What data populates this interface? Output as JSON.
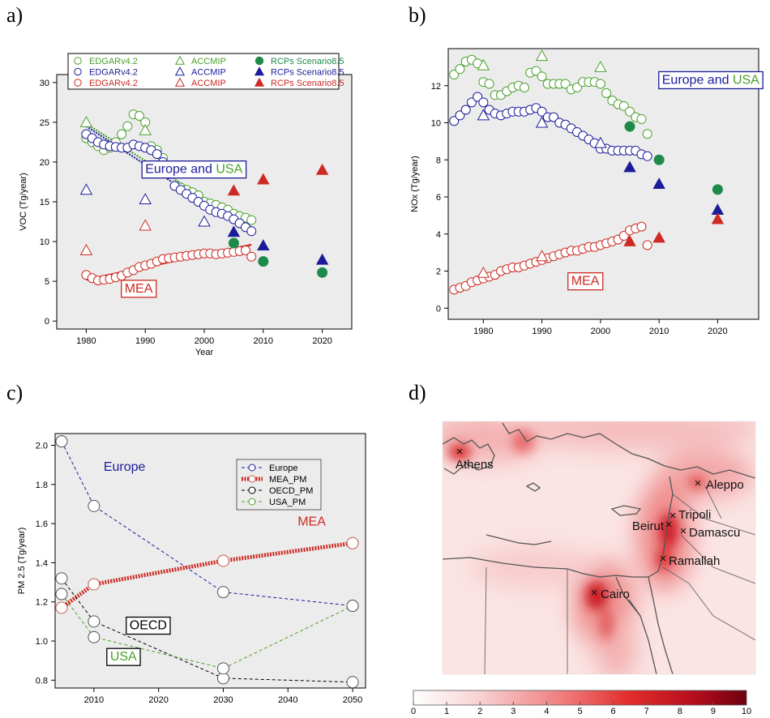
{
  "panels": {
    "a": "a)",
    "b": "b)",
    "c": "c)",
    "d": "d)"
  },
  "colors": {
    "green": "#4aa02c",
    "blue": "#1c1c9a",
    "red": "#cc2a22",
    "dkgreen": "#1e8a4a",
    "black": "#000000"
  },
  "chart_data": [
    {
      "type": "scatter",
      "panel": "a",
      "ylabel": "VOC (Tg/year)",
      "xlabel": "Year",
      "xlim": [
        1975,
        2025
      ],
      "ylim": [
        -1,
        31
      ],
      "xticks": [
        1980,
        1990,
        2000,
        2010,
        2020
      ],
      "yticks": [
        0,
        5,
        10,
        15,
        20,
        25,
        30
      ],
      "legend": {
        "position": "top",
        "entries": [
          {
            "label": "EDGARv4.2",
            "color": "green",
            "marker": "circle-open"
          },
          {
            "label": "ACCMIP",
            "color": "green",
            "marker": "triangle-open"
          },
          {
            "label": "RCPs Scenario8.5",
            "color": "dkgreen",
            "marker": "circle-filled"
          },
          {
            "label": "EDGARv4.2",
            "color": "blue",
            "marker": "circle-open"
          },
          {
            "label": "ACCMIP",
            "color": "blue",
            "marker": "triangle-open"
          },
          {
            "label": "RCPs Scenario8.5",
            "color": "blue",
            "marker": "triangle-filled"
          },
          {
            "label": "EDGARv4.2",
            "color": "red",
            "marker": "circle-open"
          },
          {
            "label": "ACCMIP",
            "color": "red",
            "marker": "triangle-open"
          },
          {
            "label": "RCPs Scenario8.5",
            "color": "red",
            "marker": "triangle-filled"
          }
        ]
      },
      "series": [
        {
          "color": "green",
          "marker": "circle-open",
          "x": [
            1980,
            1981,
            1982,
            1983,
            1984,
            1985,
            1986,
            1987,
            1988,
            1989,
            1990,
            1991,
            1992,
            1993,
            1994,
            1995,
            1996,
            1997,
            1998,
            1999,
            2000,
            2001,
            2002,
            2003,
            2004,
            2005,
            2006,
            2007,
            2008
          ],
          "y": [
            23,
            22.5,
            22,
            21.5,
            21.8,
            22.5,
            23.5,
            24.5,
            26,
            25.8,
            25,
            22,
            21.5,
            20.5,
            19,
            17,
            16.8,
            16.5,
            16.2,
            15.8,
            15,
            14.8,
            14.6,
            14.3,
            14,
            13.5,
            13.2,
            13,
            12.7
          ]
        },
        {
          "color": "blue",
          "marker": "circle-open",
          "x": [
            1980,
            1981,
            1982,
            1983,
            1984,
            1985,
            1986,
            1987,
            1988,
            1989,
            1990,
            1991,
            1992,
            1993,
            1994,
            1995,
            1996,
            1997,
            1998,
            1999,
            2000,
            2001,
            2002,
            2003,
            2004,
            2005,
            2006,
            2007,
            2008
          ],
          "y": [
            23.5,
            23,
            22.5,
            22.2,
            22,
            21.9,
            21.8,
            21.8,
            22.2,
            22,
            21.8,
            21.5,
            21,
            20,
            18.5,
            17,
            16.5,
            16,
            15.5,
            15,
            14.5,
            14,
            13.7,
            13.5,
            13.2,
            12.8,
            12.3,
            11.8,
            11.3
          ]
        },
        {
          "color": "red",
          "marker": "circle-open",
          "x": [
            1980,
            1981,
            1982,
            1983,
            1984,
            1985,
            1986,
            1987,
            1988,
            1989,
            1990,
            1991,
            1992,
            1993,
            1994,
            1995,
            1996,
            1997,
            1998,
            1999,
            2000,
            2001,
            2002,
            2003,
            2004,
            2005,
            2006,
            2007,
            2008
          ],
          "y": [
            5.8,
            5.4,
            5.1,
            5.2,
            5.3,
            5.5,
            5.7,
            6.1,
            6.4,
            6.8,
            7,
            7.2,
            7.5,
            7.8,
            7.9,
            8,
            8.1,
            8.2,
            8.3,
            8.4,
            8.5,
            8.5,
            8.4,
            8.5,
            8.6,
            8.7,
            8.8,
            8.9,
            8.1
          ]
        },
        {
          "color": "green",
          "marker": "triangle-open",
          "x": [
            1980,
            1990
          ],
          "y": [
            25,
            24
          ]
        },
        {
          "color": "blue",
          "marker": "triangle-open",
          "x": [
            1980,
            1990,
            2000
          ],
          "y": [
            16.5,
            15.3,
            12.5
          ]
        },
        {
          "color": "red",
          "marker": "triangle-open",
          "x": [
            1980,
            1990
          ],
          "y": [
            8.9,
            12
          ]
        },
        {
          "color": "dkgreen",
          "marker": "circle-filled",
          "x": [
            2005,
            2010,
            2020
          ],
          "y": [
            9.8,
            7.5,
            6.1
          ]
        },
        {
          "color": "blue",
          "marker": "triangle-filled",
          "x": [
            2005,
            2010,
            2020
          ],
          "y": [
            11.2,
            9.5,
            7.7
          ]
        },
        {
          "color": "red",
          "marker": "triangle-filled",
          "x": [
            2005,
            2010,
            2020
          ],
          "y": [
            16.4,
            17.8,
            19
          ]
        }
      ],
      "trendlines": [
        {
          "color": "green",
          "x": [
            1980,
            2008
          ],
          "y": [
            24.8,
            11.8
          ]
        },
        {
          "color": "blue",
          "x": [
            1980,
            2008
          ],
          "y": [
            24.5,
            11
          ]
        },
        {
          "color": "red",
          "x": [
            1980,
            2008
          ],
          "y": [
            5.2,
            9.6
          ]
        }
      ],
      "annotations": [
        {
          "parts": [
            {
              "text": "Europe and ",
              "color": "blue"
            },
            {
              "text": "USA",
              "color": "green"
            }
          ],
          "x": 1990,
          "y": 18.6,
          "border": "blue"
        },
        {
          "parts": [
            {
              "text": "MEA",
              "color": "red"
            }
          ],
          "x": 1986.5,
          "y": 3.6,
          "border": "red"
        }
      ]
    },
    {
      "type": "scatter",
      "panel": "b",
      "ylabel": "NOx (Tg/year)",
      "xlim": [
        1974,
        2027
      ],
      "ylim": [
        -0.6,
        14
      ],
      "xticks": [
        1980,
        1990,
        2000,
        2010,
        2020
      ],
      "yticks": [
        0,
        2,
        4,
        6,
        8,
        10,
        12
      ],
      "series": [
        {
          "color": "green",
          "marker": "circle-open",
          "x": [
            1975,
            1976,
            1977,
            1978,
            1979,
            1980,
            1981,
            1982,
            1983,
            1984,
            1985,
            1986,
            1987,
            1988,
            1989,
            1990,
            1991,
            1992,
            1993,
            1994,
            1995,
            1996,
            1997,
            1998,
            1999,
            2000,
            2001,
            2002,
            2003,
            2004,
            2005,
            2006,
            2007,
            2008
          ],
          "y": [
            12.6,
            12.9,
            13.3,
            13.4,
            13.2,
            12.2,
            12.1,
            11.5,
            11.5,
            11.7,
            11.9,
            12,
            11.9,
            12.7,
            12.8,
            12.5,
            12.1,
            12.1,
            12.1,
            12.1,
            11.8,
            11.9,
            12.2,
            12.2,
            12.2,
            12.1,
            11.6,
            11.2,
            11,
            10.9,
            10.6,
            10.3,
            10.2,
            9.4
          ]
        },
        {
          "color": "blue",
          "marker": "circle-open",
          "x": [
            1975,
            1976,
            1977,
            1978,
            1979,
            1980,
            1981,
            1982,
            1983,
            1984,
            1985,
            1986,
            1987,
            1988,
            1989,
            1990,
            1991,
            1992,
            1993,
            1994,
            1995,
            1996,
            1997,
            1998,
            1999,
            2000,
            2001,
            2002,
            2003,
            2004,
            2005,
            2006,
            2007,
            2008
          ],
          "y": [
            10.1,
            10.4,
            10.7,
            11.1,
            11.4,
            11.1,
            10.7,
            10.5,
            10.4,
            10.5,
            10.6,
            10.6,
            10.6,
            10.7,
            10.8,
            10.6,
            10.3,
            10.3,
            10,
            9.9,
            9.7,
            9.5,
            9.3,
            9.1,
            8.9,
            8.6,
            8.6,
            8.5,
            8.5,
            8.5,
            8.5,
            8.5,
            8.3,
            8.2
          ]
        },
        {
          "color": "red",
          "marker": "circle-open",
          "x": [
            1975,
            1976,
            1977,
            1978,
            1979,
            1980,
            1981,
            1982,
            1983,
            1984,
            1985,
            1986,
            1987,
            1988,
            1989,
            1990,
            1991,
            1992,
            1993,
            1994,
            1995,
            1996,
            1997,
            1998,
            1999,
            2000,
            2001,
            2002,
            2003,
            2004,
            2005,
            2006,
            2007,
            2008
          ],
          "y": [
            1,
            1.1,
            1.2,
            1.4,
            1.5,
            1.6,
            1.7,
            1.8,
            2,
            2.1,
            2.2,
            2.2,
            2.3,
            2.4,
            2.5,
            2.6,
            2.7,
            2.8,
            2.9,
            3,
            3.1,
            3.1,
            3.2,
            3.3,
            3.3,
            3.4,
            3.5,
            3.6,
            3.7,
            3.9,
            4.2,
            4.3,
            4.4,
            3.4
          ]
        },
        {
          "color": "green",
          "marker": "triangle-open",
          "x": [
            1980,
            1990,
            2000
          ],
          "y": [
            13.1,
            13.6,
            13
          ]
        },
        {
          "color": "blue",
          "marker": "triangle-open",
          "x": [
            1980,
            1990,
            2000
          ],
          "y": [
            10.4,
            10,
            8.9
          ]
        },
        {
          "color": "red",
          "marker": "triangle-open",
          "x": [
            1980,
            1990
          ],
          "y": [
            1.9,
            2.8
          ]
        },
        {
          "color": "dkgreen",
          "marker": "circle-filled",
          "x": [
            2005,
            2010,
            2020
          ],
          "y": [
            9.8,
            8,
            6.4
          ]
        },
        {
          "color": "blue",
          "marker": "triangle-filled",
          "x": [
            2005,
            2010,
            2020
          ],
          "y": [
            7.6,
            6.7,
            5.3
          ]
        },
        {
          "color": "red",
          "marker": "triangle-filled",
          "x": [
            2005,
            2010,
            2020
          ],
          "y": [
            3.6,
            3.8,
            4.8
          ]
        }
      ],
      "annotations": [
        {
          "parts": [
            {
              "text": "Europe and ",
              "color": "blue"
            },
            {
              "text": "USA",
              "color": "green"
            }
          ],
          "x": 2010.5,
          "y": 12.1,
          "border": "blue"
        },
        {
          "parts": [
            {
              "text": "MEA",
              "color": "red"
            }
          ],
          "x": 1995,
          "y": 1.25,
          "border": "red"
        }
      ]
    },
    {
      "type": "line",
      "panel": "c",
      "ylabel": "PM 2.5 (Tg/year)",
      "xlim": [
        2004,
        2052
      ],
      "ylim": [
        0.76,
        2.06
      ],
      "xticks": [
        2010,
        2020,
        2030,
        2040,
        2050
      ],
      "yticks": [
        0.8,
        1.0,
        1.2,
        1.4,
        1.6,
        1.8,
        2.0
      ],
      "legend": {
        "position": "top-right",
        "entries": [
          {
            "label": "Europe",
            "color": "blue"
          },
          {
            "label": "MEA_PM",
            "color": "red"
          },
          {
            "label": "OECD_PM",
            "color": "black"
          },
          {
            "label": "USA_PM",
            "color": "green"
          }
        ]
      },
      "series": [
        {
          "name": "Europe",
          "color": "blue",
          "x": [
            2005,
            2010,
            2030,
            2050
          ],
          "y": [
            2.02,
            1.69,
            1.25,
            1.18
          ]
        },
        {
          "name": "MEA_PM",
          "color": "red",
          "x": [
            2005,
            2010,
            2030,
            2050
          ],
          "y": [
            1.17,
            1.29,
            1.41,
            1.5
          ]
        },
        {
          "name": "OECD_PM",
          "color": "black",
          "x": [
            2005,
            2010,
            2030,
            2050
          ],
          "y": [
            1.32,
            1.1,
            0.81,
            0.79
          ]
        },
        {
          "name": "USA_PM",
          "color": "green",
          "x": [
            2005,
            2010,
            2030,
            2050
          ],
          "y": [
            1.24,
            1.02,
            0.86,
            1.18
          ]
        }
      ],
      "annotations": [
        {
          "parts": [
            {
              "text": "Europe",
              "color": "blue"
            }
          ],
          "x": 2011.5,
          "y": 1.87,
          "border": "none"
        },
        {
          "parts": [
            {
              "text": "MEA",
              "color": "red"
            }
          ],
          "x": 2041.5,
          "y": 1.59,
          "border": "none"
        },
        {
          "parts": [
            {
              "text": "OECD",
              "color": "black"
            }
          ],
          "x": 2015.5,
          "y": 1.06,
          "border": "black"
        },
        {
          "parts": [
            {
              "text": "USA",
              "color": "green"
            }
          ],
          "x": 2012.5,
          "y": 0.9,
          "border": "black"
        }
      ]
    },
    {
      "type": "heatmap",
      "panel": "d",
      "cities": [
        "Athens",
        "Aleppo",
        "Tripoli",
        "Beirut",
        "Damascu",
        "Ramallah",
        "Cairo"
      ],
      "colorbar": {
        "ticks": [
          "0",
          "1",
          "2",
          "3",
          "4",
          "5",
          "6",
          "7",
          "8",
          "9",
          "10"
        ],
        "min": 0,
        "max": 10,
        "colors": [
          "#ffffff",
          "#7a0010"
        ]
      }
    }
  ]
}
